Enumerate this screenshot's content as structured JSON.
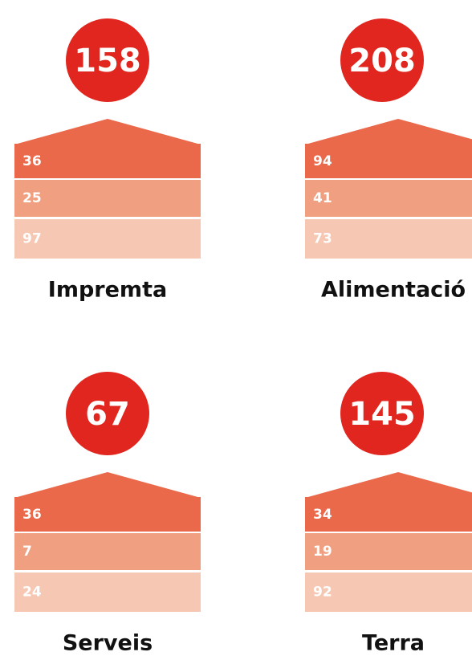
{
  "items": [
    {
      "total": "158",
      "parts": [
        "36",
        "25",
        "97"
      ],
      "label": "Impremta"
    },
    {
      "total": "208",
      "parts": [
        "94",
        "41",
        "73"
      ],
      "label": "Alimentació"
    },
    {
      "total": "67",
      "parts": [
        "36",
        "7",
        "24"
      ],
      "label": "Serveis"
    },
    {
      "total": "145",
      "parts": [
        "34",
        "19",
        "92"
      ],
      "label": "Terra"
    }
  ]
}
